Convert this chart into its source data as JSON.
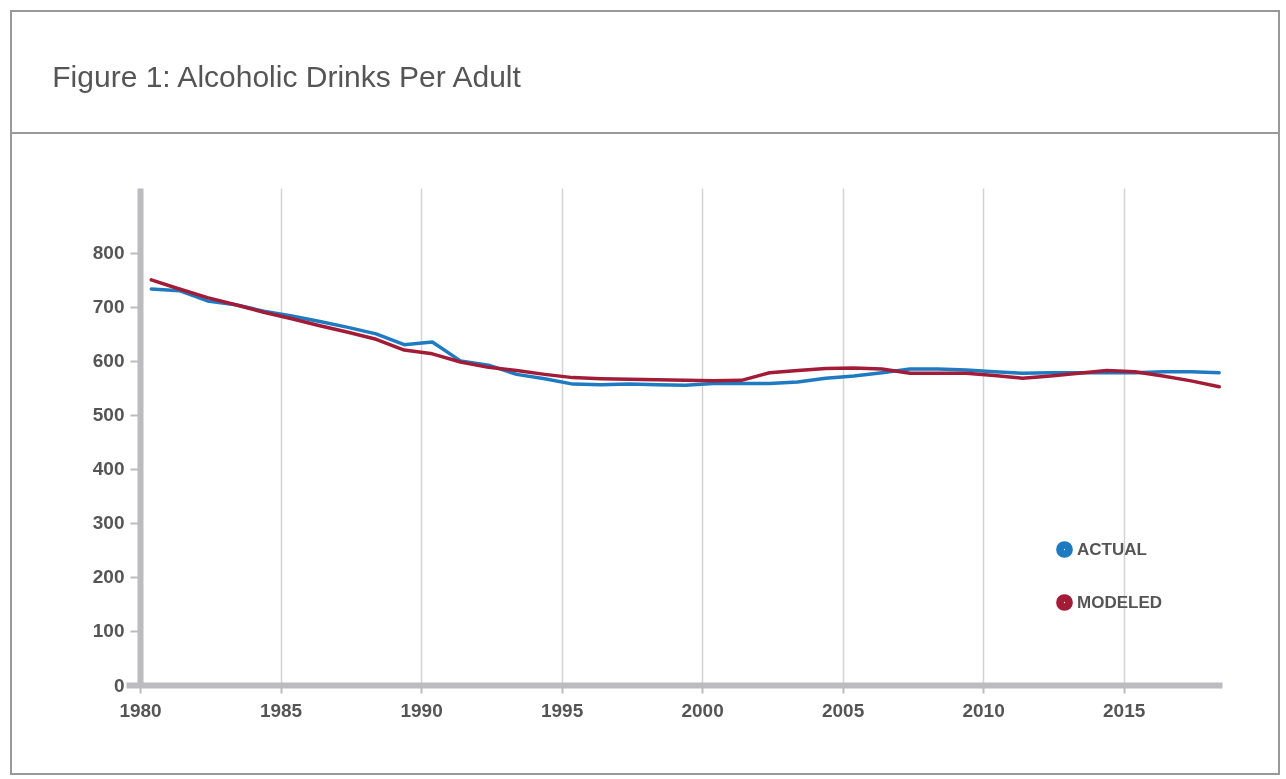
{
  "chart_data": {
    "type": "line",
    "title": "Figure 1: Alcoholic Drinks Per Adult",
    "x": [
      1980.4,
      1981.4,
      1982.4,
      1983.4,
      1984.4,
      1985.4,
      1986.4,
      1987.4,
      1988.4,
      1989.4,
      1990.4,
      1991.4,
      1992.4,
      1993.4,
      1994.4,
      1995.4,
      1996.4,
      1997.4,
      1998.4,
      1999.4,
      2000.4,
      2001.4,
      2002.4,
      2003.4,
      2004.4,
      2005.4,
      2006.4,
      2007.4,
      2008.4,
      2009.4,
      2010.4,
      2011.4,
      2012.4,
      2013.4,
      2014.4,
      2015.4,
      2016.4,
      2017.4,
      2018.4
    ],
    "series": [
      {
        "name": "ACTUAL",
        "color": "#1f7bc1",
        "values": [
          733,
          730,
          711,
          704,
          692,
          683,
          673,
          662,
          650,
          630,
          635,
          600,
          592,
          575,
          567,
          557,
          556,
          557,
          556,
          555,
          558,
          558,
          558,
          561,
          568,
          572,
          578,
          585,
          585,
          583,
          580,
          577,
          578,
          578,
          578,
          578,
          580,
          580,
          578
        ]
      },
      {
        "name": "MODELED",
        "color": "#a31c37",
        "values": [
          750,
          733,
          717,
          704,
          690,
          678,
          665,
          653,
          640,
          620,
          613,
          598,
          588,
          582,
          575,
          569,
          567,
          566,
          565,
          564,
          563,
          564,
          578,
          582,
          586,
          587,
          585,
          577,
          577,
          577,
          573,
          568,
          572,
          577,
          582,
          580,
          572,
          563,
          552
        ]
      }
    ],
    "xlim": [
      1979.5,
      2018.5
    ],
    "xticks": [
      1980,
      1985,
      1990,
      1995,
      2000,
      2005,
      2010,
      2015
    ],
    "ylim": [
      0,
      920
    ],
    "yticks": [
      0,
      100,
      200,
      300,
      400,
      500,
      600,
      700,
      800
    ],
    "grid": "x",
    "legend": "bottom right",
    "marker": "none",
    "line_style": "solid"
  }
}
